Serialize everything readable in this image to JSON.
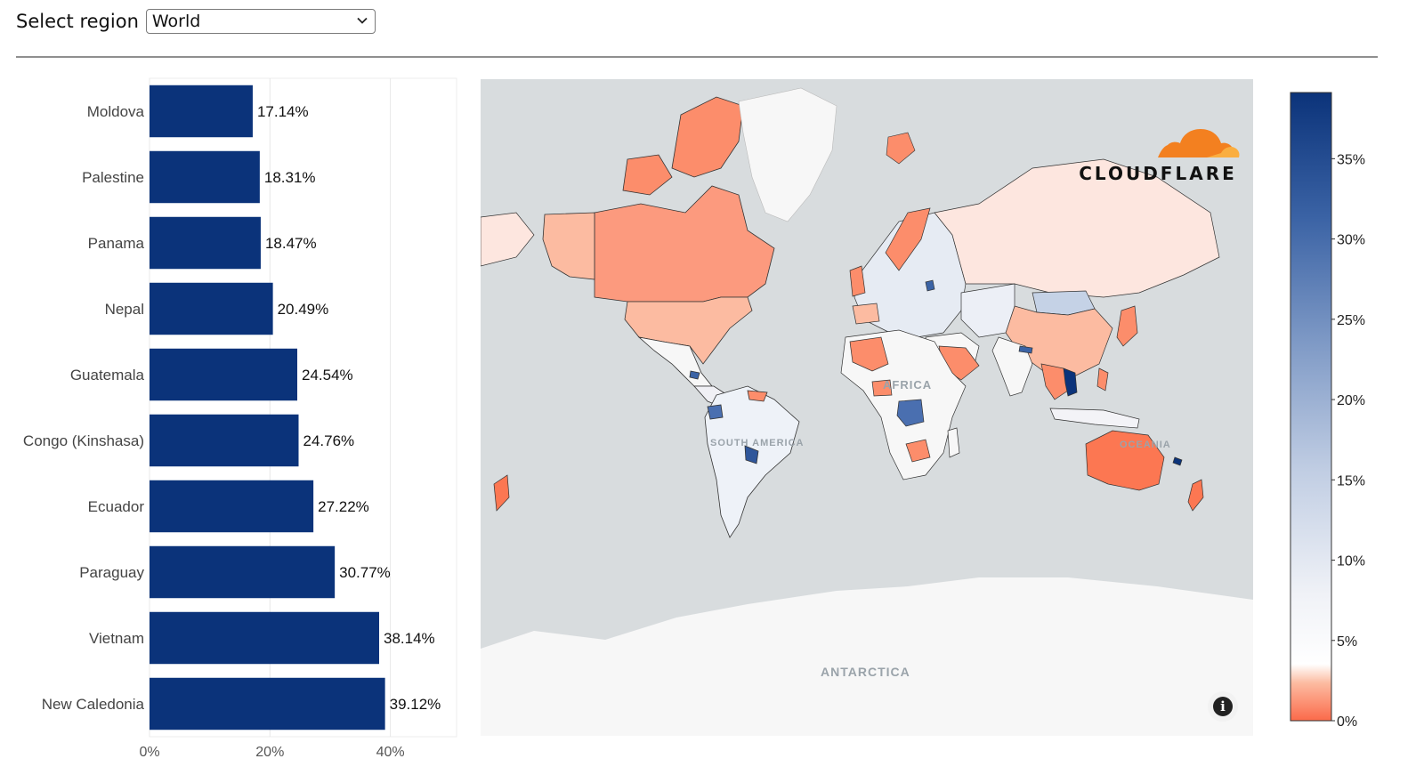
{
  "header": {
    "label": "Select region",
    "region_value": "World"
  },
  "colors": {
    "bar": "#0b337a",
    "ocean": "#d8dcde",
    "land": "#f7f7f7",
    "low": "#fb6a4a",
    "mid": "#f7f7f7",
    "high": "#0b337a",
    "logo_orange": "#f38020"
  },
  "chart_data": {
    "type": "bar",
    "orientation": "horizontal",
    "categories": [
      "Moldova",
      "Palestine",
      "Panama",
      "Nepal",
      "Guatemala",
      "Congo (Kinshasa)",
      "Ecuador",
      "Paraguay",
      "Vietnam",
      "New Caledonia"
    ],
    "values": [
      17.14,
      18.31,
      18.47,
      20.49,
      24.54,
      24.76,
      27.22,
      30.77,
      38.14,
      39.12
    ],
    "value_labels": [
      "17.14%",
      "18.31%",
      "18.47%",
      "20.49%",
      "24.54%",
      "24.76%",
      "27.22%",
      "30.77%",
      "38.14%",
      "39.12%"
    ],
    "xlim": [
      0,
      51
    ],
    "x_ticks": [
      0,
      20,
      40
    ],
    "x_tick_labels": [
      "0%",
      "20%",
      "40%"
    ],
    "grid": true
  },
  "map": {
    "labels": {
      "africa": "AFRICA",
      "south_america": "SOUTH AMERICA",
      "oceania": "OCEANIA",
      "antarctica": "ANTARCTICA"
    },
    "logo_text": "CLOUDFLARE",
    "info_icon": "info-icon"
  },
  "legend": {
    "type": "colorscale",
    "range": [
      0,
      39.12
    ],
    "ticks": [
      0,
      5,
      10,
      15,
      20,
      25,
      30,
      35
    ],
    "tick_labels": [
      "0%",
      "5%",
      "10%",
      "15%",
      "20%",
      "25%",
      "30%",
      "35%"
    ]
  }
}
